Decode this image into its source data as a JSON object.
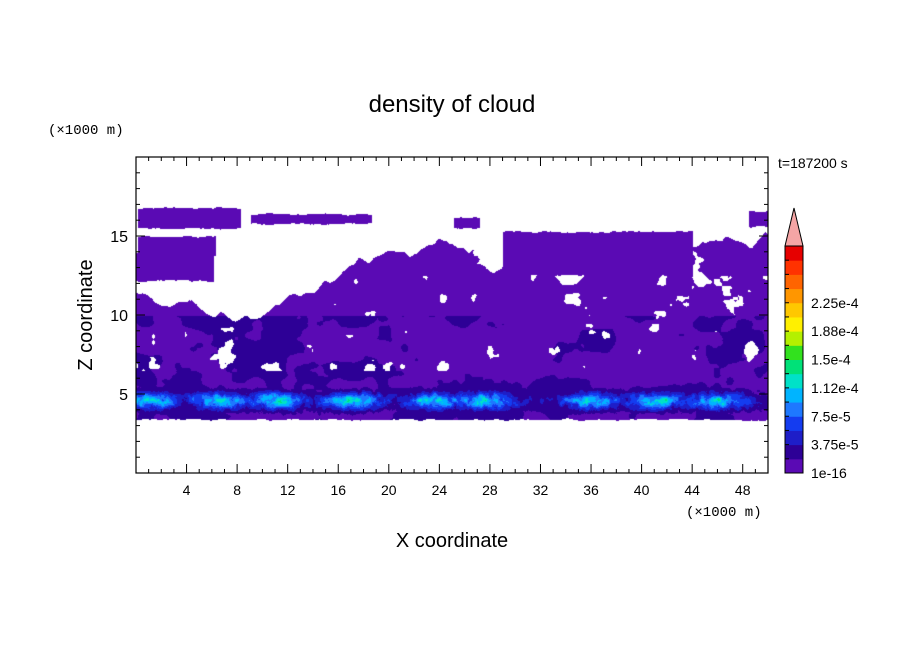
{
  "chart_data": {
    "type": "heatmap",
    "title": "density of cloud",
    "xlabel": "X coordinate",
    "ylabel": "Z coordinate",
    "x_unit": "(×1000 m)",
    "y_unit": "(×1000 m)",
    "time_label": "t=187200 s",
    "xlim": [
      0,
      50
    ],
    "ylim": [
      0,
      20
    ],
    "x_ticks": [
      "4",
      "8",
      "12",
      "16",
      "20",
      "24",
      "28",
      "32",
      "36",
      "40",
      "44",
      "48"
    ],
    "y_ticks": [
      "5",
      "10",
      "15"
    ],
    "colorbar": {
      "labels": [
        "1e-16",
        "3.75e-5",
        "7.5e-5",
        "1.12e-4",
        "1.5e-4",
        "1.88e-4",
        "2.25e-4"
      ],
      "colors": [
        "#5a0ab4",
        "#2d0096",
        "#1e1ec8",
        "#143cf0",
        "#1e78ff",
        "#00b4ff",
        "#00e1c8",
        "#00e178",
        "#32e11e",
        "#b4f000",
        "#fff000",
        "#ffc800",
        "#ff9600",
        "#ff6400",
        "#ff3200",
        "#e60000"
      ],
      "over_color": "#f5a5a5"
    },
    "field": {
      "cloud_base": 3.4,
      "cloud_layer_top": 12.6,
      "upper_layers": [
        {
          "zmin": 15.5,
          "zmax": 16.8,
          "xmin": 0,
          "xmax": 8.3
        },
        {
          "zmin": 15.8,
          "zmax": 16.4,
          "xmin": 9.0,
          "xmax": 18.7
        },
        {
          "zmin": 15.5,
          "zmax": 16.2,
          "xmin": 25.0,
          "xmax": 27.2
        },
        {
          "zmin": 15.6,
          "zmax": 16.6,
          "xmin": 48.5,
          "xmax": 50
        },
        {
          "zmin": 13.8,
          "zmax": 15.0,
          "xmin": 0,
          "xmax": 6.3
        },
        {
          "zmin": 12.2,
          "zmax": 13.9,
          "xmin": 0,
          "xmax": 6.0
        },
        {
          "zmin": 12.5,
          "zmax": 15.3,
          "xmin": 29.0,
          "xmax": 44.0
        },
        {
          "zmin": 12.5,
          "zmax": 13.6,
          "xmin": 45.5,
          "xmax": 50
        }
      ],
      "core_centers_km": [
        1.0,
        6.5,
        11.0,
        17.0,
        23.5,
        27.5,
        36.0,
        41.0,
        46.0
      ],
      "core_height_km": 4.6,
      "core_peak_value": 0.0001
    }
  }
}
